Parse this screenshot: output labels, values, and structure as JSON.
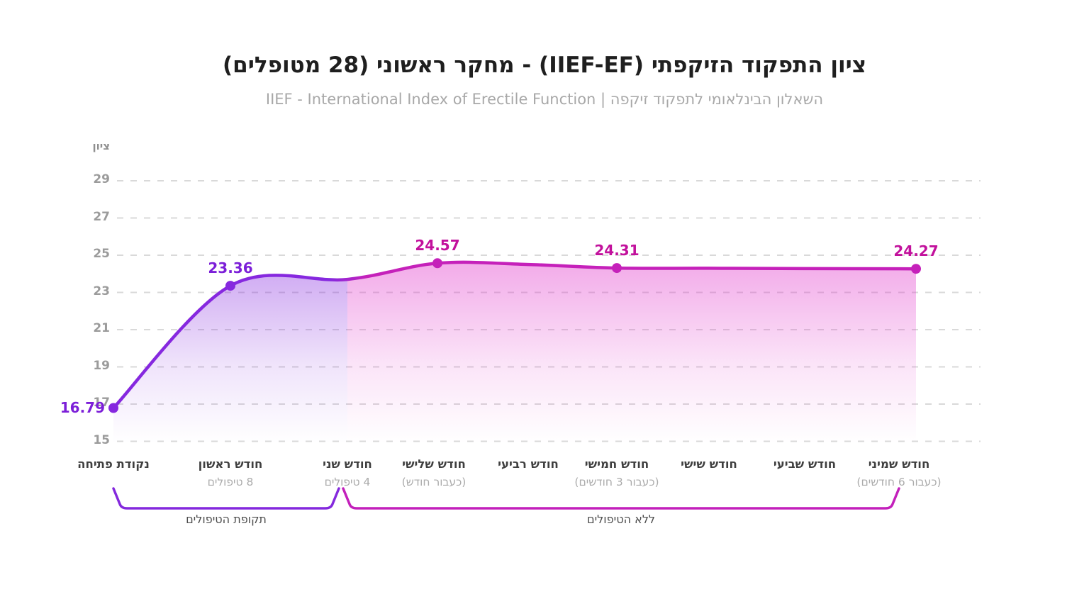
{
  "header": {
    "title": "ציון התפקוד הזיקפתי (IIEF-EF) - מחקר ראשוני (28 מטופלים)",
    "subtitle": "השאלון הבינלאומי לתפקוד זיקפה | IIEF - International Index of Erectile Function"
  },
  "chart_data": {
    "type": "line",
    "title": "ציון התפקוד הזיקפתי (IIEF-EF) - מחקר ראשוני (28 מטופלים)",
    "subtitle": "השאלון הבינלאומי לתפקוד זיקפה | IIEF - International Index of Erectile Function",
    "ylabel": "ציון",
    "ylim": [
      15,
      29
    ],
    "yticks": [
      29,
      27,
      25,
      23,
      21,
      19,
      17,
      15
    ],
    "grid": "horizontal-dashed",
    "legend": "none",
    "categories": [
      {
        "label": "נקודת פתיחה",
        "sub": ""
      },
      {
        "label": "חודש ראשון",
        "sub": "8 טיפולים"
      },
      {
        "label": "חודש שני",
        "sub": "4 טיפולים"
      },
      {
        "label": "חודש שלישי",
        "sub": "(כעבור חודש)"
      },
      {
        "label": "חודש רביעי",
        "sub": ""
      },
      {
        "label": "חודש חמישי",
        "sub": "(כעבור 3 חודשים)"
      },
      {
        "label": "חודש שישי",
        "sub": ""
      },
      {
        "label": "חודש שביעי",
        "sub": ""
      },
      {
        "label": "חודש שמיני",
        "sub": "(כעבור 6 חודשים)"
      }
    ],
    "series": [
      {
        "name": "IIEF-EF",
        "values": [
          16.79,
          23.36,
          23.7,
          24.57,
          24.5,
          24.31,
          24.3,
          24.28,
          24.27
        ],
        "labeled_points": [
          "0",
          "1",
          "3",
          "5",
          "8"
        ],
        "point_labels": {
          "0": "16.79",
          "1": "23.36",
          "3": "24.57",
          "5": "24.31",
          "8": "24.27"
        },
        "estimated_points": [
          "2",
          "4",
          "6",
          "7"
        ]
      }
    ],
    "segments": [
      {
        "label": "תקופת הטיפולים",
        "from": 0,
        "to": 2,
        "color": "#8429DD"
      },
      {
        "label": "ללא הטיפולים",
        "from": 2,
        "to": 8,
        "color": "#C320BB"
      }
    ]
  },
  "colors": {
    "purple_line": "#8628DF",
    "magenta_line": "#C521BA",
    "purple_text": "#7C1FD8",
    "magenta_text": "#C2119C",
    "area_purple_top": "rgba(134,40,223,0.40)",
    "area_pink_top": "rgba(226,62,205,0.42)",
    "grid": "#D9D9D9",
    "brace_purple": "#8429DD",
    "brace_magenta": "#C320BB"
  }
}
